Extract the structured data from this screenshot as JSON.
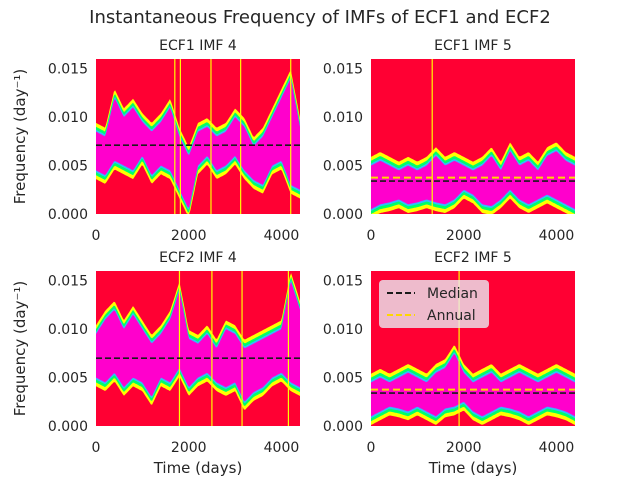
{
  "figure": {
    "title": "Instantaneous Frequency of IMFs of ECF1 and ECF2"
  },
  "colors": {
    "background": "#FF0033",
    "band_outer": "#FFFF00",
    "band_mid": "#00FF66",
    "band_inner": "#33BBFF",
    "band_core": "#FF00CC",
    "median_line": "#1a1a1a",
    "annual_line": "#FFD700"
  },
  "legend": {
    "placement": "top-left",
    "entries": [
      {
        "label": "Median",
        "color": "#1a1a1a",
        "style": "dashed"
      },
      {
        "label": "Annual",
        "color": "#FFD700",
        "style": "dashed"
      }
    ]
  },
  "chart_data": [
    {
      "type": "heatmap",
      "title": "ECF1 IMF 4",
      "xlabel": "",
      "ylabel": "Frequency (day⁻¹)",
      "xlim": [
        0,
        4400
      ],
      "ylim": [
        0,
        0.016
      ],
      "xticks": [
        0,
        2000,
        4000
      ],
      "yticks": [
        0.0,
        0.005,
        0.01,
        0.015
      ],
      "xtick_labels": [
        "0",
        "2000",
        "4000"
      ],
      "ytick_labels": [
        "0.000",
        "0.005",
        "0.010",
        "0.015"
      ],
      "median": 0.0071,
      "annual": null,
      "band": {
        "x": [
          0,
          200,
          400,
          600,
          800,
          1000,
          1200,
          1400,
          1600,
          1800,
          2000,
          2200,
          2400,
          2600,
          2800,
          3000,
          3200,
          3400,
          3600,
          3800,
          4000,
          4200,
          4400
        ],
        "lower": [
          0.0045,
          0.004,
          0.0055,
          0.005,
          0.0045,
          0.006,
          0.004,
          0.005,
          0.0045,
          0.0025,
          0.0005,
          0.005,
          0.006,
          0.0045,
          0.005,
          0.006,
          0.0045,
          0.0035,
          0.003,
          0.005,
          0.0055,
          0.003,
          0.0025
        ],
        "upper": [
          0.0085,
          0.008,
          0.012,
          0.01,
          0.011,
          0.0095,
          0.0085,
          0.0095,
          0.011,
          0.008,
          0.006,
          0.0085,
          0.009,
          0.008,
          0.0085,
          0.01,
          0.009,
          0.007,
          0.008,
          0.01,
          0.012,
          0.014,
          0.009
        ]
      },
      "spikes": [
        1700,
        1820,
        2480,
        3120,
        4200
      ]
    },
    {
      "type": "heatmap",
      "title": "ECF1 IMF 5",
      "xlabel": "",
      "ylabel": "",
      "xlim": [
        0,
        4400
      ],
      "ylim": [
        0,
        0.016
      ],
      "xticks": [
        0,
        2000,
        4000
      ],
      "yticks": [
        0.0,
        0.005,
        0.01,
        0.015
      ],
      "xtick_labels": [
        "0",
        "2000",
        "4000"
      ],
      "ytick_labels": [
        "0.000",
        "0.005",
        "0.010",
        "0.015"
      ],
      "median": 0.0034,
      "annual": 0.00376,
      "band": {
        "x": [
          0,
          200,
          400,
          600,
          800,
          1000,
          1200,
          1400,
          1600,
          1800,
          2000,
          2200,
          2400,
          2600,
          2800,
          3000,
          3200,
          3400,
          3600,
          3800,
          4000,
          4200,
          4400
        ],
        "lower": [
          0.0005,
          0.001,
          0.0012,
          0.0015,
          0.001,
          0.0012,
          0.0015,
          0.0012,
          0.001,
          0.0015,
          0.0025,
          0.002,
          0.001,
          0.0008,
          0.0015,
          0.0025,
          0.0015,
          0.001,
          0.0015,
          0.002,
          0.0015,
          0.001,
          0.0005
        ],
        "upper": [
          0.005,
          0.0055,
          0.005,
          0.0045,
          0.005,
          0.0045,
          0.005,
          0.006,
          0.005,
          0.0055,
          0.005,
          0.0045,
          0.005,
          0.006,
          0.0045,
          0.0065,
          0.005,
          0.0055,
          0.0045,
          0.006,
          0.0065,
          0.0055,
          0.005
        ]
      },
      "spikes": [
        1320
      ]
    },
    {
      "type": "heatmap",
      "title": "ECF2 IMF 4",
      "xlabel": "Time (days)",
      "ylabel": "Frequency (day⁻¹)",
      "xlim": [
        0,
        4400
      ],
      "ylim": [
        0,
        0.016
      ],
      "xticks": [
        0,
        2000,
        4000
      ],
      "yticks": [
        0.0,
        0.005,
        0.01,
        0.015
      ],
      "xtick_labels": [
        "0",
        "2000",
        "4000"
      ],
      "ytick_labels": [
        "0.000",
        "0.005",
        "0.010",
        "0.015"
      ],
      "median": 0.007,
      "annual": null,
      "band": {
        "x": [
          0,
          200,
          400,
          600,
          800,
          1000,
          1200,
          1400,
          1600,
          1800,
          2000,
          2200,
          2400,
          2600,
          2800,
          3000,
          3200,
          3400,
          3600,
          3800,
          4000,
          4200,
          4400
        ],
        "lower": [
          0.005,
          0.0045,
          0.0055,
          0.004,
          0.005,
          0.0045,
          0.003,
          0.005,
          0.0045,
          0.006,
          0.004,
          0.005,
          0.0055,
          0.0045,
          0.004,
          0.0045,
          0.0025,
          0.0035,
          0.004,
          0.005,
          0.0055,
          0.0045,
          0.004
        ],
        "upper": [
          0.0095,
          0.011,
          0.012,
          0.01,
          0.0115,
          0.01,
          0.0085,
          0.0095,
          0.011,
          0.014,
          0.009,
          0.0085,
          0.0095,
          0.008,
          0.01,
          0.0095,
          0.008,
          0.0085,
          0.009,
          0.0095,
          0.01,
          0.015,
          0.012
        ]
      },
      "spikes": [
        1800,
        2500,
        3150,
        4150
      ]
    },
    {
      "type": "heatmap",
      "title": "ECF2 IMF 5",
      "xlabel": "Time (days)",
      "ylabel": "",
      "xlim": [
        0,
        4400
      ],
      "ylim": [
        0,
        0.016
      ],
      "xticks": [
        0,
        2000,
        4000
      ],
      "yticks": [
        0.0,
        0.005,
        0.01,
        0.015
      ],
      "xtick_labels": [
        "0",
        "2000",
        "4000"
      ],
      "ytick_labels": [
        "0.000",
        "0.005",
        "0.010",
        "0.015"
      ],
      "median": 0.0034,
      "annual": 0.00376,
      "band": {
        "x": [
          0,
          200,
          400,
          600,
          800,
          1000,
          1200,
          1400,
          1600,
          1800,
          2000,
          2200,
          2400,
          2600,
          2800,
          3000,
          3200,
          3400,
          3600,
          3800,
          4000,
          4200,
          4400
        ],
        "lower": [
          0.001,
          0.0015,
          0.002,
          0.0018,
          0.0015,
          0.002,
          0.0015,
          0.001,
          0.0018,
          0.002,
          0.0025,
          0.0015,
          0.001,
          0.0015,
          0.002,
          0.0018,
          0.0015,
          0.001,
          0.0015,
          0.002,
          0.0018,
          0.0015,
          0.001
        ],
        "upper": [
          0.0045,
          0.005,
          0.0045,
          0.005,
          0.0055,
          0.005,
          0.0045,
          0.0055,
          0.006,
          0.0075,
          0.0055,
          0.0045,
          0.005,
          0.0055,
          0.0045,
          0.005,
          0.0055,
          0.005,
          0.0045,
          0.005,
          0.0055,
          0.005,
          0.0045
        ]
      },
      "spikes": [
        1900
      ]
    }
  ]
}
